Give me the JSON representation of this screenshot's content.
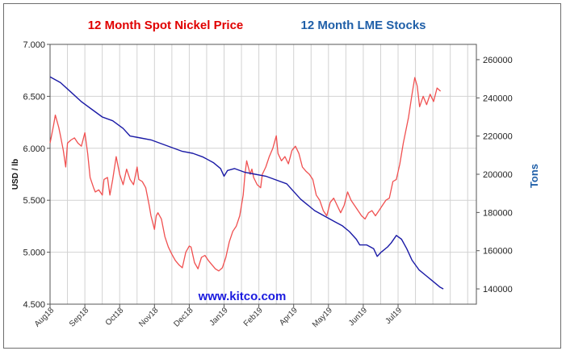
{
  "chart_data": {
    "type": "line",
    "title_left": "12 Month Spot Nickel Price",
    "title_right": "12 Month LME Stocks",
    "ylabel_left": "USD / lb",
    "ylabel_right": "Tons",
    "watermark": "www.kitco.com",
    "ylim_left": [
      4.5,
      7.0
    ],
    "ylim_right": [
      132000,
      268000
    ],
    "yticks_left": [
      "4.500",
      "5.000",
      "5.500",
      "6.000",
      "6.500",
      "7.000"
    ],
    "yticks_right": [
      "140000",
      "160000",
      "180000",
      "200000",
      "220000",
      "240000",
      "260000"
    ],
    "xlim": [
      0,
      12.25
    ],
    "x_labels": [
      {
        "x": 0,
        "label": "Aug18"
      },
      {
        "x": 1,
        "label": "Sep18"
      },
      {
        "x": 2,
        "label": "Oct18"
      },
      {
        "x": 3,
        "label": "Nov18"
      },
      {
        "x": 4,
        "label": "Dec18"
      },
      {
        "x": 5,
        "label": "Jan19"
      },
      {
        "x": 6,
        "label": "Feb19"
      },
      {
        "x": 7,
        "label": "Apr19"
      },
      {
        "x": 8,
        "label": "May19"
      },
      {
        "x": 9,
        "label": "Jun19"
      },
      {
        "x": 10,
        "label": "Jul19"
      }
    ],
    "grid": true,
    "series": [
      {
        "name": "12 Month Spot Nickel Price",
        "axis": "left",
        "color": "#f05050",
        "points": [
          [
            0.0,
            6.05
          ],
          [
            0.1,
            6.22
          ],
          [
            0.15,
            6.32
          ],
          [
            0.25,
            6.2
          ],
          [
            0.3,
            6.12
          ],
          [
            0.38,
            5.98
          ],
          [
            0.45,
            5.82
          ],
          [
            0.5,
            6.05
          ],
          [
            0.6,
            6.08
          ],
          [
            0.7,
            6.1
          ],
          [
            0.8,
            6.05
          ],
          [
            0.9,
            6.02
          ],
          [
            1.0,
            6.15
          ],
          [
            1.08,
            5.95
          ],
          [
            1.15,
            5.72
          ],
          [
            1.25,
            5.62
          ],
          [
            1.3,
            5.58
          ],
          [
            1.4,
            5.6
          ],
          [
            1.5,
            5.55
          ],
          [
            1.55,
            5.7
          ],
          [
            1.65,
            5.72
          ],
          [
            1.72,
            5.55
          ],
          [
            1.8,
            5.7
          ],
          [
            1.9,
            5.92
          ],
          [
            2.0,
            5.75
          ],
          [
            2.1,
            5.65
          ],
          [
            2.2,
            5.8
          ],
          [
            2.3,
            5.7
          ],
          [
            2.4,
            5.65
          ],
          [
            2.5,
            5.82
          ],
          [
            2.55,
            5.7
          ],
          [
            2.65,
            5.68
          ],
          [
            2.75,
            5.62
          ],
          [
            2.85,
            5.45
          ],
          [
            2.9,
            5.35
          ],
          [
            3.0,
            5.22
          ],
          [
            3.05,
            5.35
          ],
          [
            3.1,
            5.38
          ],
          [
            3.2,
            5.32
          ],
          [
            3.3,
            5.15
          ],
          [
            3.4,
            5.05
          ],
          [
            3.5,
            4.98
          ],
          [
            3.6,
            4.92
          ],
          [
            3.7,
            4.88
          ],
          [
            3.8,
            4.85
          ],
          [
            3.9,
            5.0
          ],
          [
            4.0,
            5.06
          ],
          [
            4.05,
            5.05
          ],
          [
            4.15,
            4.9
          ],
          [
            4.25,
            4.84
          ],
          [
            4.35,
            4.95
          ],
          [
            4.45,
            4.97
          ],
          [
            4.55,
            4.92
          ],
          [
            4.65,
            4.88
          ],
          [
            4.75,
            4.84
          ],
          [
            4.85,
            4.82
          ],
          [
            4.95,
            4.85
          ],
          [
            5.05,
            4.95
          ],
          [
            5.15,
            5.1
          ],
          [
            5.25,
            5.2
          ],
          [
            5.35,
            5.25
          ],
          [
            5.45,
            5.35
          ],
          [
            5.55,
            5.55
          ],
          [
            5.6,
            5.75
          ],
          [
            5.65,
            5.88
          ],
          [
            5.75,
            5.75
          ],
          [
            5.8,
            5.8
          ],
          [
            5.85,
            5.72
          ],
          [
            5.95,
            5.65
          ],
          [
            6.05,
            5.62
          ],
          [
            6.1,
            5.75
          ],
          [
            6.2,
            5.82
          ],
          [
            6.3,
            5.92
          ],
          [
            6.4,
            6.0
          ],
          [
            6.5,
            6.12
          ],
          [
            6.55,
            5.95
          ],
          [
            6.65,
            5.88
          ],
          [
            6.75,
            5.92
          ],
          [
            6.85,
            5.85
          ],
          [
            6.95,
            5.98
          ],
          [
            7.05,
            6.02
          ],
          [
            7.15,
            5.95
          ],
          [
            7.25,
            5.82
          ],
          [
            7.35,
            5.78
          ],
          [
            7.45,
            5.75
          ],
          [
            7.55,
            5.7
          ],
          [
            7.65,
            5.55
          ],
          [
            7.75,
            5.5
          ],
          [
            7.85,
            5.4
          ],
          [
            7.95,
            5.35
          ],
          [
            8.05,
            5.48
          ],
          [
            8.15,
            5.52
          ],
          [
            8.25,
            5.45
          ],
          [
            8.35,
            5.38
          ],
          [
            8.45,
            5.45
          ],
          [
            8.55,
            5.58
          ],
          [
            8.65,
            5.5
          ],
          [
            8.75,
            5.45
          ],
          [
            8.85,
            5.4
          ],
          [
            8.95,
            5.35
          ],
          [
            9.05,
            5.32
          ],
          [
            9.15,
            5.38
          ],
          [
            9.25,
            5.4
          ],
          [
            9.35,
            5.35
          ],
          [
            9.45,
            5.4
          ],
          [
            9.55,
            5.45
          ],
          [
            9.65,
            5.5
          ],
          [
            9.75,
            5.52
          ],
          [
            9.85,
            5.68
          ],
          [
            9.95,
            5.7
          ],
          [
            10.05,
            5.85
          ],
          [
            10.15,
            6.05
          ],
          [
            10.3,
            6.3
          ],
          [
            10.4,
            6.52
          ],
          [
            10.48,
            6.68
          ],
          [
            10.55,
            6.6
          ],
          [
            10.62,
            6.4
          ],
          [
            10.72,
            6.5
          ],
          [
            10.82,
            6.42
          ],
          [
            10.92,
            6.52
          ],
          [
            11.02,
            6.45
          ],
          [
            11.12,
            6.58
          ],
          [
            11.22,
            6.55
          ]
        ]
      },
      {
        "name": "12 Month LME Stocks",
        "axis": "right",
        "color": "#1a1aa6",
        "points": [
          [
            0.0,
            251000
          ],
          [
            0.3,
            248000
          ],
          [
            0.6,
            243000
          ],
          [
            0.9,
            238000
          ],
          [
            1.2,
            234000
          ],
          [
            1.5,
            230000
          ],
          [
            1.8,
            228000
          ],
          [
            2.1,
            224000
          ],
          [
            2.3,
            220000
          ],
          [
            2.6,
            219000
          ],
          [
            2.9,
            218000
          ],
          [
            3.2,
            216000
          ],
          [
            3.5,
            214000
          ],
          [
            3.8,
            212000
          ],
          [
            4.1,
            211000
          ],
          [
            4.4,
            209000
          ],
          [
            4.7,
            206000
          ],
          [
            4.9,
            203000
          ],
          [
            5.0,
            199000
          ],
          [
            5.1,
            202000
          ],
          [
            5.3,
            203000
          ],
          [
            5.6,
            201000
          ],
          [
            5.9,
            200000
          ],
          [
            6.2,
            199000
          ],
          [
            6.5,
            197000
          ],
          [
            6.8,
            195000
          ],
          [
            7.0,
            191000
          ],
          [
            7.2,
            187000
          ],
          [
            7.4,
            184000
          ],
          [
            7.6,
            181000
          ],
          [
            7.8,
            179000
          ],
          [
            8.0,
            177000
          ],
          [
            8.2,
            175000
          ],
          [
            8.4,
            173000
          ],
          [
            8.6,
            170000
          ],
          [
            8.8,
            166000
          ],
          [
            8.9,
            163000
          ],
          [
            9.1,
            163000
          ],
          [
            9.3,
            161000
          ],
          [
            9.4,
            157000
          ],
          [
            9.5,
            159000
          ],
          [
            9.7,
            162000
          ],
          [
            9.8,
            164000
          ],
          [
            9.95,
            168000
          ],
          [
            10.1,
            166000
          ],
          [
            10.25,
            161000
          ],
          [
            10.4,
            155000
          ],
          [
            10.6,
            150000
          ],
          [
            10.8,
            147000
          ],
          [
            11.0,
            144000
          ],
          [
            11.2,
            141000
          ],
          [
            11.3,
            140000
          ]
        ]
      }
    ]
  }
}
